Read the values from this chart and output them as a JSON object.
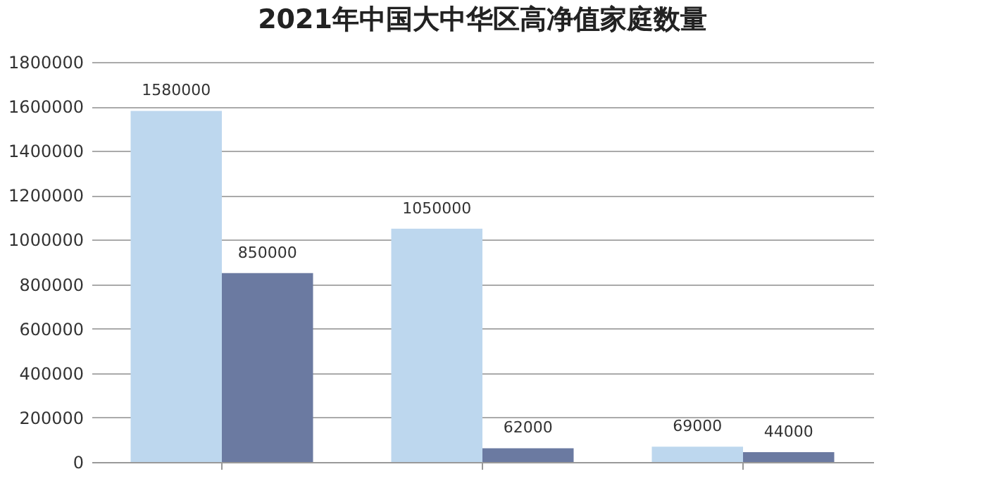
{
  "chart_data": {
    "type": "bar",
    "title": "2021年中国大中华区高净值家庭数量",
    "categories": [
      null,
      null,
      null
    ],
    "series": [
      {
        "color": "#bdd7ee",
        "values": [
          1580000,
          1050000,
          69000
        ]
      },
      {
        "color": "#6b7aa1",
        "values": [
          850000,
          62000,
          44000
        ]
      }
    ],
    "ylim": [
      0,
      1800000
    ],
    "yticks": [
      0,
      200000,
      400000,
      600000,
      800000,
      1000000,
      1200000,
      1400000,
      1600000,
      1800000
    ],
    "grid": "y",
    "data_labels": true
  }
}
